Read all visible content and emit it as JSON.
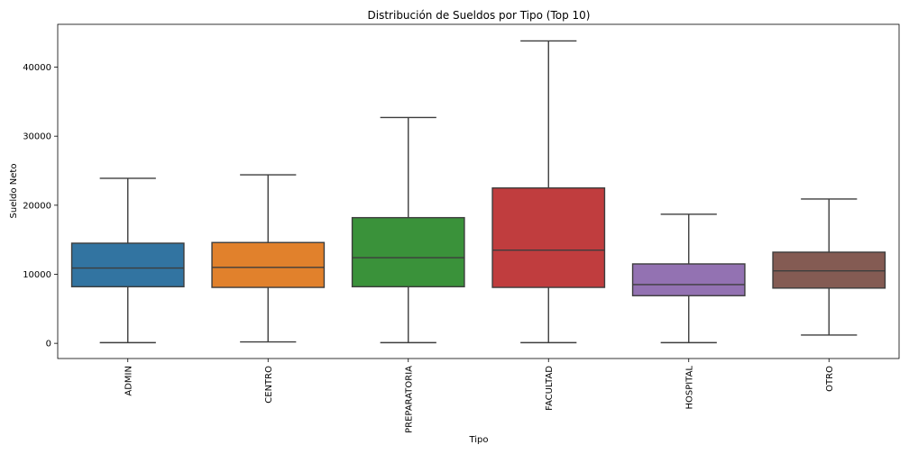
{
  "chart_data": {
    "type": "box",
    "title": "Distribución de Sueldos por Tipo (Top 10)",
    "xlabel": "Tipo",
    "ylabel": "Sueldo Neto",
    "ylim": [
      -2200,
      46200
    ],
    "yticks": [
      0,
      10000,
      20000,
      30000,
      40000
    ],
    "ytick_labels": [
      "0",
      "10000",
      "20000",
      "30000",
      "40000"
    ],
    "categories": [
      "ADMIN",
      "CENTRO",
      "PREPARATORIA",
      "FACULTAD",
      "HOSPITAL",
      "OTRO"
    ],
    "colors": [
      "#3274a1",
      "#e1812c",
      "#3a923a",
      "#c03d3e",
      "#9372b2",
      "#845b53"
    ],
    "boxes": [
      {
        "whisker_low": 100,
        "q1": 8200,
        "median": 10900,
        "q3": 14500,
        "whisker_high": 23900
      },
      {
        "whisker_low": 200,
        "q1": 8100,
        "median": 11000,
        "q3": 14600,
        "whisker_high": 24400
      },
      {
        "whisker_low": 100,
        "q1": 8200,
        "median": 12400,
        "q3": 18200,
        "whisker_high": 32700
      },
      {
        "whisker_low": 100,
        "q1": 8100,
        "median": 13500,
        "q3": 22500,
        "whisker_high": 43800
      },
      {
        "whisker_low": 100,
        "q1": 6900,
        "median": 8500,
        "q3": 11500,
        "whisker_high": 18700
      },
      {
        "whisker_low": 1200,
        "q1": 8000,
        "median": 10500,
        "q3": 13200,
        "whisker_high": 20900
      }
    ],
    "grid": false,
    "legend": false
  }
}
